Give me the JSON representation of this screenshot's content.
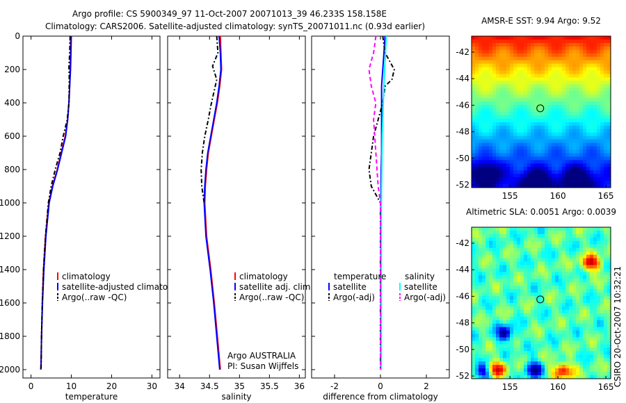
{
  "header": {
    "line1": "Argo profile: CS 5900349_97 11-Oct-2007 20071013_39 46.233S 158.158E",
    "line2": "Climatology: CARS2006. Satellite-adjusted climatology: synTS_20071011.nc (0.93d earlier)"
  },
  "colors": {
    "climatology": "#ff0000",
    "satellite": "#0000ff",
    "argo": "#000000",
    "sal_satellite": "#00ffff",
    "sal_argo": "#ff00ff"
  },
  "chart_data": [
    {
      "type": "line",
      "id": "temperature",
      "xlabel": "temperature",
      "xlim": [
        -2,
        32
      ],
      "ylim": [
        0,
        2050
      ],
      "y_reversed": true,
      "xticks": [
        0,
        10,
        20,
        30
      ],
      "yticks": [
        0,
        200,
        400,
        600,
        800,
        1000,
        1200,
        1400,
        1600,
        1800,
        2000
      ],
      "legend": [
        "climatology",
        "satellite-adjusted climatology",
        "Argo(..raw -QC)"
      ],
      "series": [
        {
          "name": "climatology",
          "color": "#ff0000",
          "dash": "",
          "x": [
            9.8,
            9.8,
            9.7,
            9.6,
            9.4,
            9.1,
            8.5,
            7.5,
            6.5,
            5.3,
            4.4,
            3.6,
            3.1,
            2.8,
            2.6,
            2.5,
            2.4
          ],
          "y": [
            0,
            100,
            200,
            300,
            400,
            500,
            600,
            700,
            800,
            900,
            1000,
            1200,
            1400,
            1600,
            1800,
            1950,
            2000
          ]
        },
        {
          "name": "satellite-adjusted climatology",
          "color": "#0000ff",
          "dash": "",
          "x": [
            10.0,
            9.9,
            9.8,
            9.6,
            9.4,
            9.1,
            8.6,
            7.6,
            6.6,
            5.4,
            4.5,
            3.7,
            3.2,
            2.85,
            2.6,
            2.5,
            2.45
          ],
          "y": [
            0,
            100,
            200,
            300,
            400,
            500,
            600,
            700,
            800,
            900,
            1000,
            1200,
            1400,
            1600,
            1800,
            1950,
            2000
          ]
        },
        {
          "name": "Argo(..raw -QC)",
          "color": "#000000",
          "dash": "6,3,2,3",
          "x": [
            9.7,
            9.6,
            9.4,
            9.5,
            9.4,
            9.0,
            8.0,
            7.2,
            6.0,
            5.0,
            4.3,
            3.6,
            3.1,
            2.8,
            2.6,
            2.5
          ],
          "y": [
            0,
            100,
            180,
            260,
            400,
            500,
            600,
            700,
            800,
            900,
            1000,
            1200,
            1400,
            1600,
            1800,
            2000
          ]
        }
      ]
    },
    {
      "type": "line",
      "id": "salinity",
      "xlabel": "salinity",
      "xlim": [
        33.8,
        36.1
      ],
      "ylim": [
        0,
        2050
      ],
      "y_reversed": true,
      "xticks": [
        34,
        34.5,
        35,
        35.5,
        36
      ],
      "yticks": [
        0,
        200,
        400,
        600,
        800,
        1000,
        1200,
        1400,
        1600,
        1800,
        2000
      ],
      "legend": [
        "climatology",
        "satellite adj. clim.",
        "Argo(..raw -QC)"
      ],
      "series": [
        {
          "name": "climatology",
          "color": "#ff0000",
          "dash": "",
          "x": [
            34.68,
            34.69,
            34.7,
            34.67,
            34.63,
            34.58,
            34.53,
            34.48,
            34.45,
            34.43,
            34.42,
            34.45,
            34.52,
            34.58,
            34.63,
            34.68
          ],
          "y": [
            0,
            100,
            200,
            300,
            400,
            500,
            600,
            700,
            800,
            900,
            1000,
            1200,
            1400,
            1600,
            1800,
            2000
          ]
        },
        {
          "name": "satellite adj. clim.",
          "color": "#0000ff",
          "dash": "",
          "x": [
            34.66,
            34.68,
            34.69,
            34.66,
            34.62,
            34.57,
            34.52,
            34.47,
            34.44,
            34.42,
            34.41,
            34.44,
            34.51,
            34.57,
            34.62,
            34.67
          ],
          "y": [
            0,
            100,
            200,
            300,
            400,
            500,
            600,
            700,
            800,
            900,
            1000,
            1200,
            1400,
            1600,
            1800,
            2000
          ]
        },
        {
          "name": "Argo(..raw -QC)",
          "color": "#000000",
          "dash": "6,3,2,3",
          "x": [
            34.62,
            34.64,
            34.55,
            34.62,
            34.52,
            34.48,
            34.42,
            34.38,
            34.36,
            34.37,
            34.41
          ],
          "y": [
            0,
            100,
            180,
            260,
            420,
            500,
            600,
            700,
            800,
            900,
            1000
          ]
        }
      ],
      "annotations": [
        "Argo AUSTRALIA",
        "PI: Susan Wijffels"
      ]
    },
    {
      "type": "line",
      "id": "difference",
      "xlabel": "difference from climatology",
      "xlim": [
        -3,
        3
      ],
      "ylim": [
        0,
        2050
      ],
      "y_reversed": true,
      "xticks": [
        -2,
        0,
        2
      ],
      "yticks": [
        0,
        200,
        400,
        600,
        800,
        1000,
        1200,
        1400,
        1600,
        1800,
        2000
      ],
      "legend_title_left": "temperature",
      "legend_title_right": "salinity",
      "legend": [
        "satellite",
        "Argo(-adj)",
        "satellite",
        "Argo(-adj)"
      ],
      "series": [
        {
          "name": "temperature satellite",
          "color": "#0000ff",
          "dash": "",
          "x": [
            0.2,
            0.15,
            0.1,
            0.05,
            0.05,
            0.05,
            0.05,
            0.05,
            0.03,
            0.02,
            0.02,
            0.02,
            0.02,
            0.02,
            0.02
          ],
          "y": [
            0,
            100,
            200,
            300,
            400,
            500,
            600,
            700,
            800,
            900,
            1000,
            1200,
            1400,
            1600,
            2000
          ]
        },
        {
          "name": "temperature Argo(-adj)",
          "color": "#000000",
          "dash": "6,3,2,3",
          "x": [
            0.1,
            0.2,
            0.6,
            0.5,
            0.2,
            0.1,
            -0.3,
            -0.4,
            -0.5,
            -0.4,
            0.0,
            0.0,
            0.0,
            0.0
          ],
          "y": [
            0,
            100,
            200,
            260,
            300,
            400,
            600,
            700,
            800,
            900,
            1000,
            1200,
            1600,
            2000
          ]
        },
        {
          "name": "salinity satellite",
          "color": "#00ffff",
          "dash": "",
          "x": [
            0.25,
            0.22,
            0.18,
            0.15,
            0.12,
            0.1,
            0.08,
            0.07,
            0.06,
            0.05,
            0.04,
            0.04,
            0.04,
            0.04
          ],
          "y": [
            0,
            100,
            200,
            300,
            400,
            500,
            600,
            700,
            800,
            900,
            1000,
            1200,
            1600,
            2000
          ]
        },
        {
          "name": "salinity Argo(-adj)",
          "color": "#ff00ff",
          "dash": "6,4",
          "x": [
            -0.2,
            -0.3,
            -0.5,
            -0.4,
            -0.2,
            -0.3,
            -0.25,
            -0.2,
            -0.15,
            -0.1,
            0.0,
            0.0,
            0.0,
            0.0
          ],
          "y": [
            0,
            100,
            200,
            300,
            400,
            500,
            600,
            700,
            800,
            900,
            1000,
            1200,
            1600,
            2000
          ]
        }
      ]
    },
    {
      "type": "heatmap",
      "id": "sst",
      "title": "AMSR-E SST: 9.94 Argo: 9.52",
      "xlim": [
        151,
        165.5
      ],
      "ylim": [
        -52.2,
        -40.8
      ],
      "xticks": [
        155,
        160,
        165
      ],
      "yticks": [
        -42,
        -44,
        -46,
        -48,
        -50,
        -52
      ],
      "marker": {
        "lon": 158.158,
        "lat": -46.233
      }
    },
    {
      "type": "heatmap",
      "id": "sla",
      "title": "Altimetric SLA: 0.0051 Argo: 0.0039",
      "xlim": [
        151,
        165.5
      ],
      "ylim": [
        -52.2,
        -40.8
      ],
      "xticks": [
        155,
        160,
        165
      ],
      "yticks": [
        -42,
        -44,
        -46,
        -48,
        -50,
        -52
      ],
      "marker": {
        "lon": 158.158,
        "lat": -46.233
      }
    }
  ],
  "footer": {
    "stamp": "CSIRO 20-Oct-2007 10:32:21"
  }
}
